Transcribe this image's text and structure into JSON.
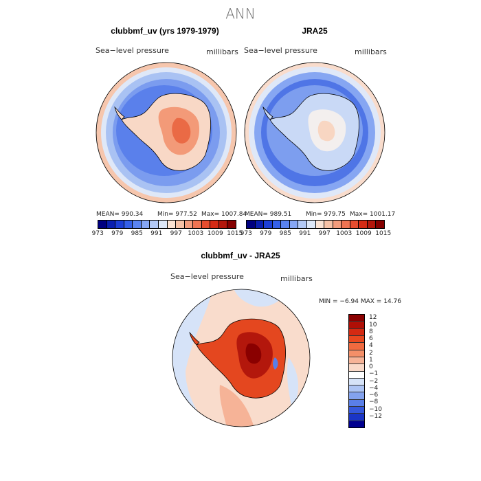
{
  "title": "ANN",
  "panels": [
    {
      "title": "clubbmf_uv (yrs 1979-1979)",
      "variable": "Sea−level pressure",
      "units": "millibars",
      "mean": "MEAN= 990.34",
      "min": "Min= 977.52",
      "max": "Max= 1007.84"
    },
    {
      "title": "JRA25",
      "variable": "Sea−level pressure",
      "units": "millibars",
      "mean": "MEAN= 989.51",
      "min": "Min= 979.75",
      "max": "Max= 1001.17"
    },
    {
      "title": "clubbmf_uv - JRA25",
      "variable": "Sea−level pressure",
      "units": "millibars",
      "minmax": "MIN =   −6.94  MAX =   14.76"
    }
  ],
  "colorbar_main": {
    "ticks": [
      "973",
      "979",
      "985",
      "991",
      "997",
      "1003",
      "1009",
      "1015"
    ],
    "colors": [
      "#000080",
      "#0a1fb0",
      "#1d3fd6",
      "#3560e8",
      "#5a83f0",
      "#86a6f4",
      "#b3c9f6",
      "#dde7f7",
      "#fbe3d3",
      "#f7c2a6",
      "#f39c7c",
      "#ee7453",
      "#e64d2f",
      "#d52b15",
      "#b3170c",
      "#850000"
    ]
  },
  "colorbar_diff": {
    "ticks": [
      "12",
      "10",
      "8",
      "6",
      "4",
      "2",
      "1",
      "0",
      "−1",
      "−2",
      "−4",
      "−6",
      "−8",
      "−10",
      "−12"
    ],
    "colors": [
      "#8a0000",
      "#b00f06",
      "#d42a12",
      "#e8481f",
      "#f06a3f",
      "#f48f68",
      "#f6b397",
      "#f9d9c8",
      "#ffffff",
      "#d6e3f8",
      "#adc4f4",
      "#83a2ee",
      "#5a7fe8",
      "#3558dc",
      "#1a35c6",
      "#00008f"
    ]
  },
  "chart_data": {
    "type": "heatmap",
    "title": "ANN",
    "maps": [
      {
        "name": "clubbmf_uv (yrs 1979-1979)",
        "field": "Sea-level pressure",
        "units": "millibars",
        "mean": 990.34,
        "min": 977.52,
        "max": 1007.84,
        "levels": [
          973,
          976,
          979,
          982,
          985,
          988,
          991,
          994,
          997,
          1000,
          1003,
          1006,
          1009,
          1012,
          1015
        ]
      },
      {
        "name": "JRA25",
        "field": "Sea-level pressure",
        "units": "millibars",
        "mean": 989.51,
        "min": 979.75,
        "max": 1001.17,
        "levels": [
          973,
          976,
          979,
          982,
          985,
          988,
          991,
          994,
          997,
          1000,
          1003,
          1006,
          1009,
          1012,
          1015
        ]
      },
      {
        "name": "clubbmf_uv - JRA25",
        "field": "Sea-level pressure",
        "units": "millibars",
        "min": -6.94,
        "max": 14.76,
        "levels": [
          -12,
          -10,
          -8,
          -6,
          -4,
          -2,
          -1,
          0,
          1,
          2,
          4,
          6,
          8,
          10,
          12
        ]
      }
    ]
  }
}
